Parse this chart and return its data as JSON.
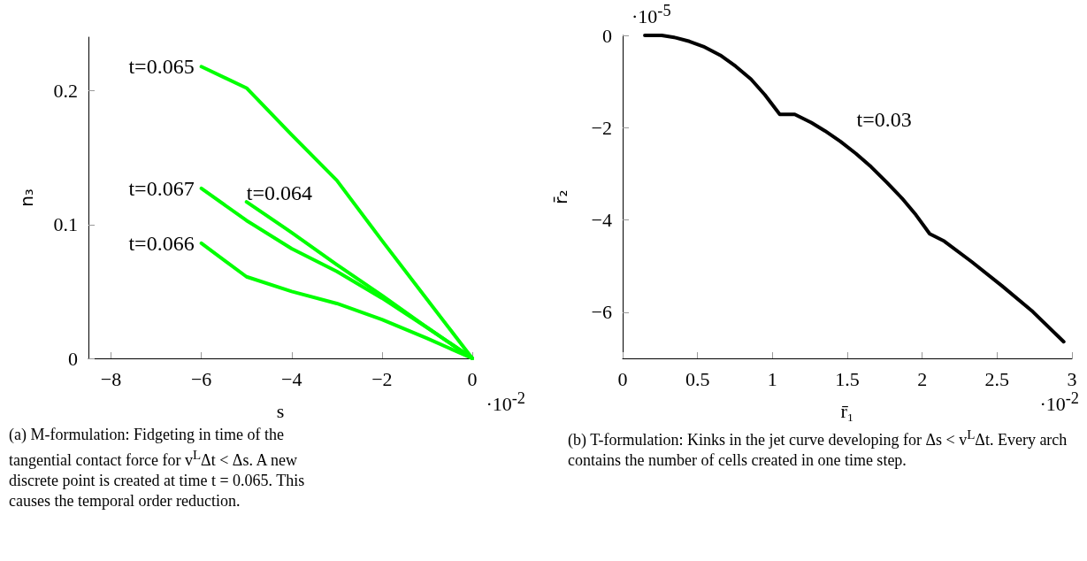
{
  "chart_data": [
    {
      "type": "line",
      "xlabel": "s",
      "ylabel": "n₃",
      "xlim": [
        -8.5,
        0
      ],
      "xticks": [
        -8,
        -6,
        -4,
        -2,
        0
      ],
      "ylim": [
        0,
        0.24
      ],
      "yticks": [
        0,
        0.1,
        0.2
      ],
      "grid": false,
      "marker": "none",
      "line_style": "solid",
      "series": [
        {
          "name": "t=0.065",
          "color": "#00ff00",
          "x": [
            -6,
            -5,
            -4,
            -3,
            -2,
            -1,
            0
          ],
          "values": [
            0.218,
            0.202,
            0.167,
            0.133,
            0.088,
            0.044,
            0
          ]
        },
        {
          "name": "t=0.064",
          "color": "#00ff00",
          "x": [
            -5,
            -4,
            -3,
            -2,
            -1,
            0
          ],
          "values": [
            0.117,
            0.094,
            0.07,
            0.047,
            0.023,
            0
          ]
        },
        {
          "name": "t=0.067",
          "color": "#00ff00",
          "x": [
            -6,
            -5,
            -4,
            -3,
            -2,
            -1,
            0
          ],
          "values": [
            0.127,
            0.103,
            0.082,
            0.065,
            0.045,
            0.023,
            0
          ]
        },
        {
          "name": "t=0.066",
          "color": "#00ff00",
          "x": [
            -6,
            -5,
            -4,
            -3,
            -2,
            -1,
            0
          ],
          "values": [
            0.086,
            0.061,
            0.05,
            0.041,
            0.029,
            0.015,
            0
          ]
        }
      ],
      "annotations": [
        "·10$^{-2}$",
        "(a) M-formulation: Fidgeting in time of the tangential contact force for v$^{L}$Δt < Δs. A new discrete point is created at time t = 0.065. This causes the temporal order reduction."
      ]
    },
    {
      "type": "line",
      "xlabel": "r̄₁",
      "ylabel": "r̄₂",
      "xlim": [
        0,
        3
      ],
      "xticks": [
        0,
        0.5,
        1,
        1.5,
        2,
        2.5,
        3
      ],
      "ylim": [
        -7,
        0
      ],
      "yticks": [
        -6,
        -4,
        -2,
        0
      ],
      "grid": false,
      "marker": "none",
      "line_style": "solid",
      "series": [
        {
          "name": "t=0.03",
          "color": "#000000",
          "x": [
            0.148,
            0.261,
            0.354,
            0.446,
            0.539,
            0.652,
            0.755,
            0.857,
            0.95,
            1.049,
            1.149,
            1.259,
            1.351,
            1.454,
            1.557,
            1.659,
            1.762,
            1.865,
            1.958,
            2.05,
            2.147,
            2.328,
            2.533,
            2.739,
            2.945
          ],
          "values": [
            0,
            0,
            -0.05,
            -0.13,
            -0.24,
            -0.43,
            -0.67,
            -0.95,
            -1.29,
            -1.71,
            -1.71,
            -1.89,
            -2.07,
            -2.3,
            -2.56,
            -2.85,
            -3.18,
            -3.53,
            -3.89,
            -4.3,
            -4.46,
            -4.9,
            -5.43,
            -5.99,
            -6.64
          ]
        }
      ],
      "annotations": [
        "·10$^{-2}$",
        "·10$^{-5}$",
        "(b) T-formulation: Kinks in the jet curve developing for Δs < v$^{L}$Δt. Every arch contains the number of cells created in one time step."
      ]
    }
  ]
}
